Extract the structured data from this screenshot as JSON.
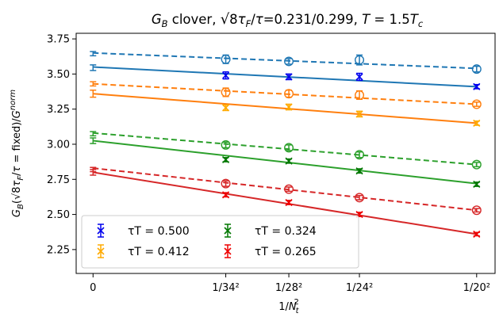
{
  "chart_data": {
    "type": "scatter",
    "title": "G_B clover, √8τ_F/τ=0.231/0.299, T = 1.5T_c",
    "xlabel": "1/N_t^2",
    "ylabel": "G_B(√8τ_F/τ = fixed)/G^norm",
    "x_ticks": [
      {
        "value": 0,
        "label": "0"
      },
      {
        "value": 0.000865,
        "label": "1/34²"
      },
      {
        "value": 0.001276,
        "label": "1/28²"
      },
      {
        "value": 0.001736,
        "label": "1/24²"
      },
      {
        "value": 0.0025,
        "label": "1/20²"
      }
    ],
    "xlim": [
      -0.00011,
      0.00262
    ],
    "ylim": [
      2.08,
      3.79
    ],
    "y_ticks": [
      2.25,
      2.5,
      2.75,
      3.0,
      3.25,
      3.5,
      3.75
    ],
    "legend_position": "lower-left",
    "series": [
      {
        "name": "τT = 0.500",
        "color": "#1f77b4",
        "marker_color": "#0000ee",
        "x": [
          0.000865,
          0.001276,
          0.001736,
          0.0025
        ],
        "cross_y": [
          3.49,
          3.48,
          3.48,
          3.41
        ],
        "cross_err": [
          0.025,
          0.02,
          0.025,
          0.015
        ],
        "circle_y": [
          3.605,
          3.59,
          3.6,
          3.535
        ],
        "circle_err": [
          0.03,
          0.02,
          0.035,
          0.02
        ],
        "fit_solid": [
          3.55,
          3.41
        ],
        "fit_dashed": [
          3.65,
          3.54
        ],
        "cont_solid": [
          3.545,
          0.02
        ],
        "cont_dashed": [
          3.645,
          0.015
        ]
      },
      {
        "name": "τT = 0.412",
        "color": "#ff7f0e",
        "marker_color": "#ffaa00",
        "x": [
          0.000865,
          0.001276,
          0.001736,
          0.0025
        ],
        "cross_y": [
          3.26,
          3.265,
          3.215,
          3.15
        ],
        "cross_err": [
          0.02,
          0.02,
          0.02,
          0.015
        ],
        "circle_y": [
          3.37,
          3.36,
          3.35,
          3.285
        ],
        "circle_err": [
          0.03,
          0.025,
          0.03,
          0.015
        ],
        "fit_solid": [
          3.36,
          3.15
        ],
        "fit_dashed": [
          3.43,
          3.285
        ],
        "cont_solid": [
          3.36,
          0.025
        ],
        "cont_dashed": [
          3.43,
          0.015
        ]
      },
      {
        "name": "τT = 0.324",
        "color": "#2ca02c",
        "marker_color": "#007700",
        "x": [
          0.000865,
          0.001276,
          0.001736,
          0.0025
        ],
        "cross_y": [
          2.89,
          2.88,
          2.81,
          2.715
        ],
        "cross_err": [
          0.015,
          0.015,
          0.015,
          0.015
        ],
        "circle_y": [
          2.995,
          2.975,
          2.925,
          2.855
        ],
        "circle_err": [
          0.02,
          0.02,
          0.02,
          0.015
        ],
        "fit_solid": [
          3.025,
          2.72
        ],
        "fit_dashed": [
          3.08,
          2.855
        ],
        "cont_solid": [
          3.025,
          0.02
        ],
        "cont_dashed": [
          3.075,
          0.015
        ]
      },
      {
        "name": "τT = 0.265",
        "color": "#d62728",
        "marker_color": "#ee0000",
        "x": [
          0.000865,
          0.001276,
          0.001736,
          0.0025
        ],
        "cross_y": [
          2.64,
          2.585,
          2.5,
          2.36
        ],
        "cross_err": [
          0.015,
          0.015,
          0.015,
          0.012
        ],
        "circle_y": [
          2.72,
          2.68,
          2.62,
          2.53
        ],
        "circle_err": [
          0.02,
          0.015,
          0.015,
          0.012
        ],
        "fit_solid": [
          2.8,
          2.36
        ],
        "fit_dashed": [
          2.83,
          2.53
        ],
        "cont_solid": [
          2.8,
          0.02
        ],
        "cont_dashed": [
          2.82,
          0.015
        ]
      }
    ]
  }
}
